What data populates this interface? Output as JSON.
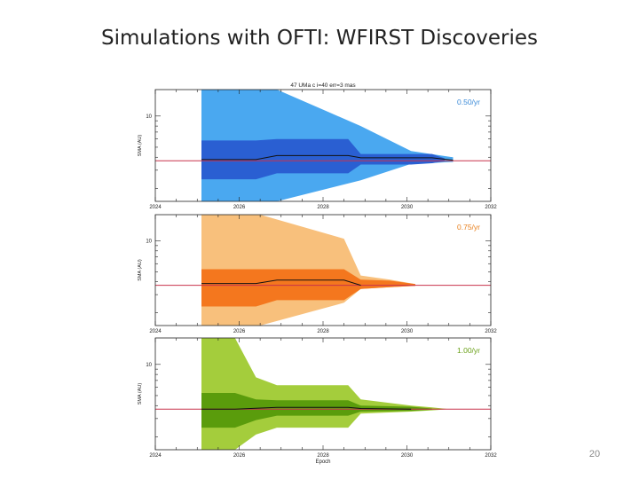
{
  "slide": {
    "title": "Simulations with OFTI: WFIRST Discoveries",
    "page_number": "20"
  },
  "chart_data": [
    {
      "type": "area",
      "title": "47 UMa c i=40 err=3 mas",
      "annotation": "0.50/yr",
      "xlabel": "",
      "ylabel": "SMA (AU)",
      "xlim": [
        2024,
        2032
      ],
      "x_ticks": [
        2024,
        2026,
        2028,
        2030,
        2032
      ],
      "ylim": [
        1.5,
        18
      ],
      "y_ticks": [
        10
      ],
      "y_scale": "log",
      "grid": false,
      "true_value": 3.7,
      "colors": {
        "outer": "#4aa8f0",
        "inner": "#2a5fd2",
        "median": "#111111",
        "true_line": "#c8324c"
      },
      "outer_band": {
        "x": [
          2025.1,
          2026.9,
          2028.9,
          2030.1,
          2031.1
        ],
        "upper": [
          18,
          18,
          8.0,
          4.6,
          4.0
        ],
        "lower": [
          1.5,
          1.5,
          2.4,
          3.45,
          3.6
        ]
      },
      "inner_band": {
        "x": [
          2025.1,
          2026.4,
          2026.9,
          2028.6,
          2028.9,
          2030.1,
          2030.6,
          2030.9
        ],
        "upper": [
          5.8,
          5.8,
          6.0,
          6.0,
          4.3,
          4.3,
          4.3,
          3.9
        ],
        "lower": [
          2.45,
          2.45,
          2.8,
          2.8,
          3.4,
          3.4,
          3.5,
          3.65
        ]
      },
      "median": {
        "x": [
          2025.1,
          2026.4,
          2026.9,
          2028.6,
          2028.9,
          2030.1,
          2030.6,
          2031.1
        ],
        "y": [
          3.8,
          3.8,
          4.15,
          4.15,
          3.95,
          3.95,
          3.95,
          3.75
        ]
      }
    },
    {
      "type": "area",
      "title": "",
      "annotation": "0.75/yr",
      "xlabel": "",
      "ylabel": "SMA (AU)",
      "xlim": [
        2024,
        2032
      ],
      "x_ticks": [
        2024,
        2026,
        2028,
        2030,
        2032
      ],
      "ylim": [
        1.5,
        18
      ],
      "y_ticks": [
        10
      ],
      "y_scale": "log",
      "grid": false,
      "true_value": 3.7,
      "colors": {
        "outer": "#f8c07c",
        "inner": "#f4771e",
        "median": "#111111",
        "true_line": "#c8324c"
      },
      "outer_band": {
        "x": [
          2025.1,
          2026.5,
          2028.5,
          2028.9,
          2029.6,
          2030.2
        ],
        "upper": [
          18,
          18,
          10.5,
          4.6,
          4.2,
          3.8
        ],
        "lower": [
          1.5,
          1.5,
          2.5,
          3.4,
          3.55,
          3.65
        ]
      },
      "inner_band": {
        "x": [
          2025.1,
          2026.4,
          2026.9,
          2028.5,
          2028.9,
          2029.6,
          2030.2
        ],
        "upper": [
          5.3,
          5.3,
          5.3,
          5.3,
          4.2,
          4.1,
          3.8
        ],
        "lower": [
          2.3,
          2.3,
          2.65,
          2.65,
          3.4,
          3.55,
          3.65
        ]
      },
      "median": {
        "x": [
          2025.1,
          2026.4,
          2026.9,
          2028.5,
          2028.9
        ],
        "y": [
          3.85,
          3.85,
          4.15,
          4.15,
          3.7
        ]
      }
    },
    {
      "type": "area",
      "title": "",
      "annotation": "1.00/yr",
      "xlabel": "Epoch",
      "ylabel": "SMA (AU)",
      "xlim": [
        2024,
        2032
      ],
      "x_ticks": [
        2024,
        2026,
        2028,
        2030,
        2032
      ],
      "ylim": [
        1.5,
        18
      ],
      "y_ticks": [
        10
      ],
      "y_scale": "log",
      "grid": false,
      "true_value": 3.7,
      "colors": {
        "outer": "#a4cd3c",
        "inner": "#5a9c0c",
        "median": "#111111",
        "true_line": "#c8324c"
      },
      "outer_band": {
        "x": [
          2025.1,
          2025.9,
          2026.4,
          2026.9,
          2028.6,
          2028.9,
          2030.1,
          2030.6,
          2031.0
        ],
        "upper": [
          18,
          18,
          7.5,
          6.3,
          6.3,
          4.6,
          4.0,
          3.85,
          3.7
        ],
        "lower": [
          1.5,
          1.5,
          2.1,
          2.45,
          2.45,
          3.35,
          3.5,
          3.6,
          3.7
        ]
      },
      "inner_band": {
        "x": [
          2025.1,
          2025.9,
          2026.4,
          2026.9,
          2028.6,
          2028.9,
          2030.1,
          2030.6
        ],
        "upper": [
          5.3,
          5.3,
          4.6,
          4.5,
          4.5,
          4.0,
          3.9,
          3.75
        ],
        "lower": [
          2.45,
          2.45,
          2.9,
          3.2,
          3.2,
          3.5,
          3.55,
          3.65
        ]
      },
      "median": {
        "x": [
          2025.1,
          2025.9,
          2026.9,
          2028.6,
          2028.9,
          2030.1
        ],
        "y": [
          3.7,
          3.7,
          3.85,
          3.85,
          3.75,
          3.7
        ]
      }
    }
  ]
}
